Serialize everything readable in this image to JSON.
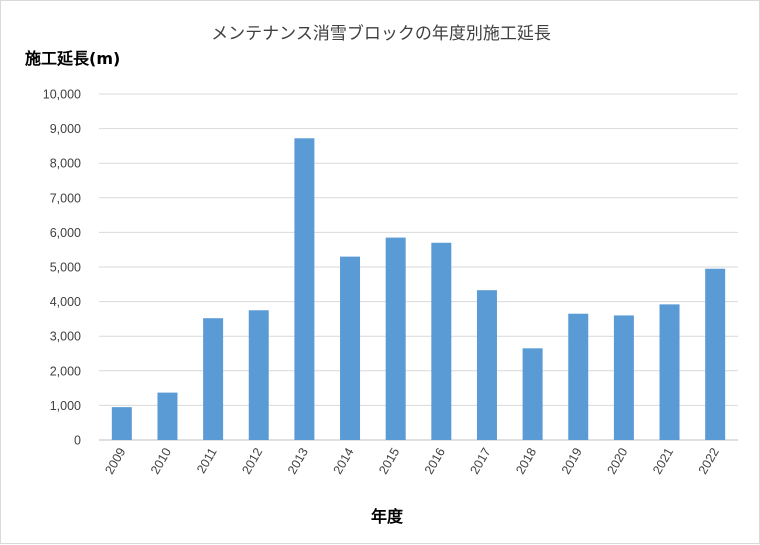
{
  "chart_data": {
    "type": "bar",
    "title": "メンテナンス消雪ブロックの年度別施工延長",
    "ylabel": "施工延長(m)",
    "xlabel": "年度",
    "categories": [
      "2009",
      "2010",
      "2011",
      "2012",
      "2013",
      "2014",
      "2015",
      "2016",
      "2017",
      "2018",
      "2019",
      "2020",
      "2021",
      "2022"
    ],
    "values": [
      950,
      1370,
      3520,
      3750,
      8720,
      5300,
      5850,
      5700,
      4330,
      2650,
      3650,
      3600,
      3920,
      4950
    ],
    "ylim": [
      0,
      10000
    ],
    "yticks": [
      "0",
      "1,000",
      "2,000",
      "3,000",
      "4,000",
      "5,000",
      "6,000",
      "7,000",
      "8,000",
      "9,000",
      "10,000"
    ],
    "grid": true,
    "legend": "none",
    "bar_color": "#5b9bd5"
  }
}
